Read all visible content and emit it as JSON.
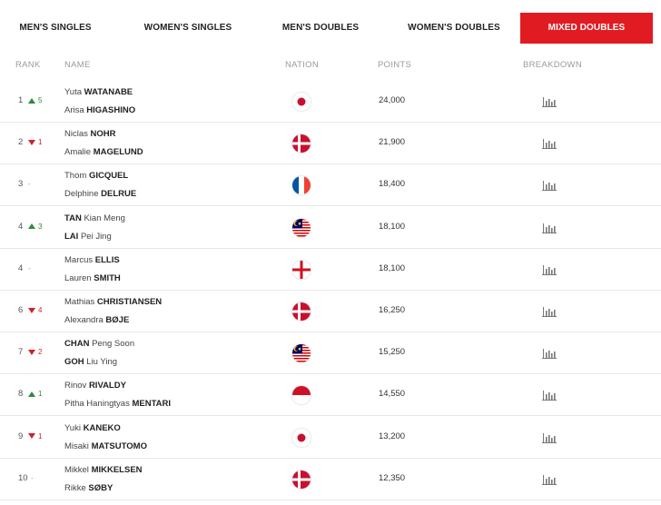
{
  "tabs": [
    {
      "label": "MEN'S SINGLES",
      "active": false
    },
    {
      "label": "WOMEN'S SINGLES",
      "active": false
    },
    {
      "label": "MEN'S DOUBLES",
      "active": false
    },
    {
      "label": "WOMEN'S DOUBLES",
      "active": false
    },
    {
      "label": "MIXED DOUBLES",
      "active": true
    }
  ],
  "headers": {
    "rank": "RANK",
    "name": "NAME",
    "nation": "NATION",
    "points": "POINTS",
    "breakdown": "BREAKDOWN"
  },
  "colors": {
    "accent": "#e11b22",
    "up": "#2e8b3a",
    "down": "#d0202a"
  },
  "rows": [
    {
      "rank": "1",
      "dir": "up",
      "change": "5",
      "p1_first": "Yuta",
      "p1_last": "WATANABE",
      "p2_first": "Arisa",
      "p2_last": "HIGASHINO",
      "nation": "japan",
      "points": "24,000"
    },
    {
      "rank": "2",
      "dir": "down",
      "change": "1",
      "p1_first": "Niclas",
      "p1_last": "NOHR",
      "p2_first": "Amalie",
      "p2_last": "MAGELUND",
      "nation": "denmark",
      "points": "21,900"
    },
    {
      "rank": "3",
      "dir": "same",
      "change": "-",
      "p1_first": "Thom",
      "p1_last": "GICQUEL",
      "p2_first": "Delphine",
      "p2_last": "DELRUE",
      "nation": "france",
      "points": "18,400"
    },
    {
      "rank": "4",
      "dir": "up",
      "change": "3",
      "p1_first": "Kian Meng",
      "p1_last": "TAN",
      "p1_last_first": true,
      "p2_first": "Pei Jing",
      "p2_last": "LAI",
      "p2_last_first": true,
      "nation": "malaysia",
      "points": "18,100"
    },
    {
      "rank": "4",
      "dir": "same",
      "change": "-",
      "p1_first": "Marcus",
      "p1_last": "ELLIS",
      "p2_first": "Lauren",
      "p2_last": "SMITH",
      "nation": "england",
      "points": "18,100"
    },
    {
      "rank": "6",
      "dir": "down",
      "change": "4",
      "p1_first": "Mathias",
      "p1_last": "CHRISTIANSEN",
      "p2_first": "Alexandra",
      "p2_last": "BØJE",
      "nation": "denmark",
      "points": "16,250"
    },
    {
      "rank": "7",
      "dir": "down",
      "change": "2",
      "p1_first": "Peng Soon",
      "p1_last": "CHAN",
      "p1_last_first": true,
      "p2_first": "Liu Ying",
      "p2_last": "GOH",
      "p2_last_first": true,
      "nation": "malaysia",
      "points": "15,250"
    },
    {
      "rank": "8",
      "dir": "up",
      "change": "1",
      "p1_first": "Rinov",
      "p1_last": "RIVALDY",
      "p2_first": "Pitha Haningtyas",
      "p2_last": "MENTARI",
      "nation": "indonesia",
      "points": "14,550"
    },
    {
      "rank": "9",
      "dir": "down",
      "change": "1",
      "p1_first": "Yuki",
      "p1_last": "KANEKO",
      "p2_first": "Misaki",
      "p2_last": "MATSUTOMO",
      "nation": "japan",
      "points": "13,200"
    },
    {
      "rank": "10",
      "dir": "same",
      "change": "-",
      "p1_first": "Mikkel",
      "p1_last": "MIKKELSEN",
      "p2_first": "Rikke",
      "p2_last": "SØBY",
      "nation": "denmark",
      "points": "12,350"
    }
  ]
}
